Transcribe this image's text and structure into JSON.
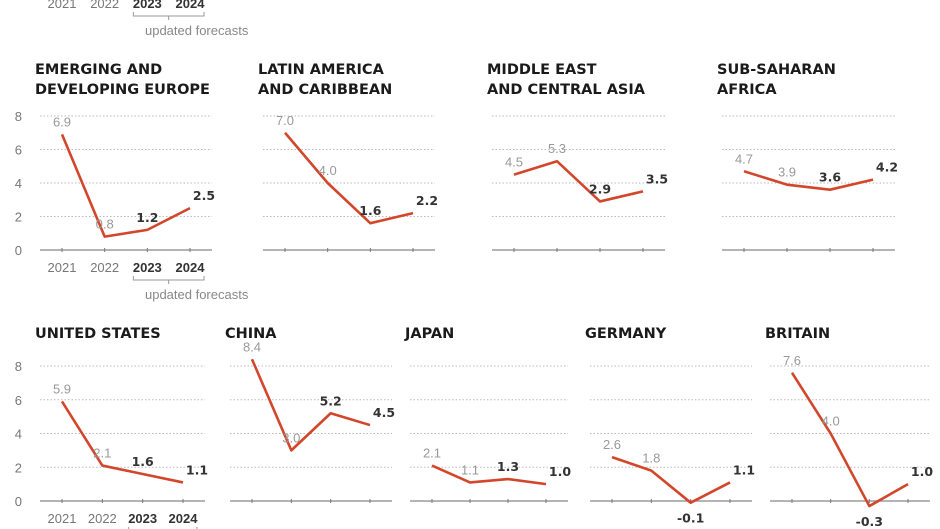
{
  "chart_data": {
    "type": "line",
    "x": [
      "2021",
      "2022",
      "2023",
      "2024"
    ],
    "forecast_years": [
      "2023",
      "2024"
    ],
    "annotation": "updated forecasts",
    "ylim": [
      -0.5,
      8
    ],
    "yticks": [
      "0",
      "2",
      "4",
      "6",
      "8"
    ],
    "grid": true,
    "line_color": "#d2472b",
    "panels": [
      {
        "title": [
          "EMERGING AND",
          "DEVELOPING EUROPE"
        ],
        "values": [
          6.9,
          0.8,
          1.2,
          2.5
        ],
        "labels": [
          "6.9",
          "0.8",
          "1.2",
          "2.5"
        ]
      },
      {
        "title": [
          "LATIN AMERICA",
          "AND CARIBBEAN"
        ],
        "values": [
          7.0,
          4.0,
          1.6,
          2.2
        ],
        "labels": [
          "7.0",
          "4.0",
          "1.6",
          "2.2"
        ]
      },
      {
        "title": [
          "MIDDLE EAST",
          "AND CENTRAL ASIA"
        ],
        "values": [
          4.5,
          5.3,
          2.9,
          3.5
        ],
        "labels": [
          "4.5",
          "5.3",
          "2.9",
          "3.5"
        ]
      },
      {
        "title": [
          "SUB-SAHARAN",
          "AFRICA"
        ],
        "values": [
          4.7,
          3.9,
          3.6,
          4.2
        ],
        "labels": [
          "4.7",
          "3.9",
          "3.6",
          "4.2"
        ]
      },
      {
        "title": [
          "UNITED STATES"
        ],
        "values": [
          5.9,
          2.1,
          1.6,
          1.1
        ],
        "labels": [
          "5.9",
          "2.1",
          "1.6",
          "1.1"
        ]
      },
      {
        "title": [
          "CHINA"
        ],
        "values": [
          8.4,
          3.0,
          5.2,
          4.5
        ],
        "labels": [
          "8.4",
          "3.0",
          "5.2",
          "4.5"
        ]
      },
      {
        "title": [
          "JAPAN"
        ],
        "values": [
          2.1,
          1.1,
          1.3,
          1.0
        ],
        "labels": [
          "2.1",
          "1.1",
          "1.3",
          "1.0"
        ]
      },
      {
        "title": [
          "GERMANY"
        ],
        "values": [
          2.6,
          1.8,
          -0.1,
          1.1
        ],
        "labels": [
          "2.6",
          "1.8",
          "-0.1",
          "1.1"
        ]
      },
      {
        "title": [
          "BRITAIN"
        ],
        "values": [
          7.6,
          4.0,
          -0.3,
          1.0
        ],
        "labels": [
          "7.6",
          "4.0",
          "-0.3",
          "1.0"
        ]
      }
    ]
  }
}
